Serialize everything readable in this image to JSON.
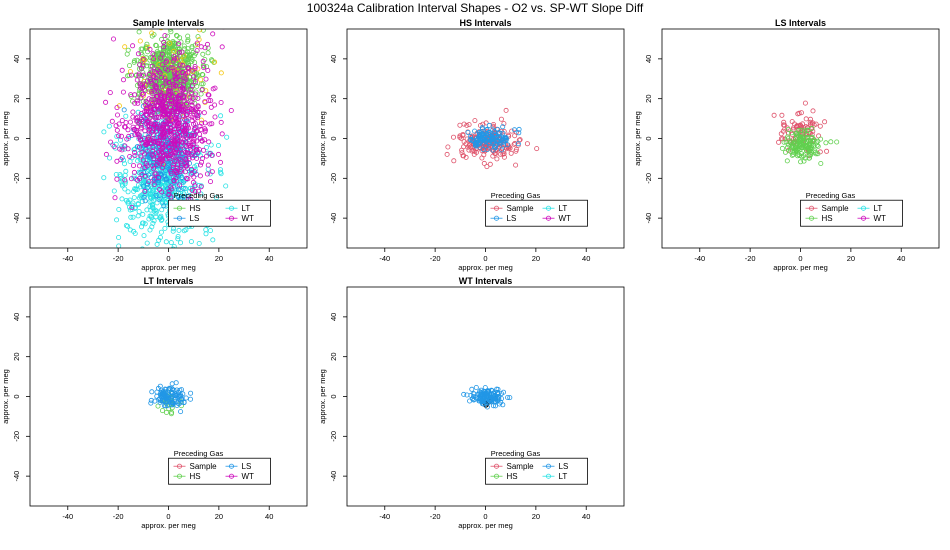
{
  "title": "100324a   Calibration Interval Shapes - O2 vs. SP-WT Slope Diff",
  "colors": {
    "Sample": "#df536b",
    "HS": "#61d04f",
    "LS": "#2297e6",
    "LT": "#28e2e5",
    "WT": "#cd0bbc",
    "extra_yellow": "#f5c710",
    "extra_black": "#000000"
  },
  "legend_title": "Preceding Gas",
  "chart_data": [
    {
      "type": "scatter",
      "title": "Sample Intervals",
      "xlabel": "approx. per meg",
      "ylabel": "approx. per meg",
      "xlim": [
        -55,
        55
      ],
      "ylim": [
        -55,
        55
      ],
      "xticks": [
        -40,
        -20,
        0,
        20,
        40
      ],
      "yticks": [
        -40,
        -20,
        0,
        20,
        40
      ],
      "legend": [
        "HS",
        "LT",
        "LS",
        "WT"
      ],
      "series": [
        {
          "name": "LT",
          "count": 700,
          "cx": -2,
          "cy": -18,
          "sx": 8,
          "sy": 18
        },
        {
          "name": "LS",
          "count": 250,
          "cx": -1,
          "cy": -5,
          "sx": 6,
          "sy": 14
        },
        {
          "name": "HS",
          "count": 650,
          "cx": 0,
          "cy": 32,
          "sx": 6,
          "sy": 9
        },
        {
          "name": "extra_yellow",
          "count": 60,
          "cx": 2,
          "cy": 30,
          "sx": 10,
          "sy": 15
        },
        {
          "name": "WT",
          "count": 750,
          "cx": 0,
          "cy": 8,
          "sx": 9,
          "sy": 17
        }
      ]
    },
    {
      "type": "scatter",
      "title": "HS Intervals",
      "xlabel": "approx. per meg",
      "ylabel": "approx. per meg",
      "xlim": [
        -55,
        55
      ],
      "ylim": [
        -55,
        55
      ],
      "xticks": [
        -40,
        -20,
        0,
        20,
        40
      ],
      "yticks": [
        -40,
        -20,
        0,
        20,
        40
      ],
      "legend": [
        "Sample",
        "LT",
        "LS",
        "WT"
      ],
      "series": [
        {
          "name": "Sample",
          "count": 200,
          "cx": 0,
          "cy": -2,
          "sx": 6.5,
          "sy": 4.5
        },
        {
          "name": "LS",
          "count": 120,
          "cx": 1,
          "cy": 0,
          "sx": 4.5,
          "sy": 2.5
        }
      ]
    },
    {
      "type": "scatter",
      "title": "LS Intervals",
      "xlabel": "approx. per meg",
      "ylabel": "approx. per meg",
      "xlim": [
        -55,
        55
      ],
      "ylim": [
        -55,
        55
      ],
      "xticks": [
        -40,
        -20,
        0,
        20,
        40
      ],
      "yticks": [
        -40,
        -20,
        0,
        20,
        40
      ],
      "legend": [
        "Sample",
        "LT",
        "HS",
        "WT"
      ],
      "series": [
        {
          "name": "Sample",
          "count": 90,
          "cx": 0,
          "cy": 3,
          "sx": 4.5,
          "sy": 5
        },
        {
          "name": "HS",
          "count": 140,
          "cx": 1,
          "cy": -3,
          "sx": 4,
          "sy": 4
        }
      ]
    },
    {
      "type": "scatter",
      "title": "LT Intervals",
      "xlabel": "approx. per meg",
      "ylabel": "approx. per meg",
      "xlim": [
        -55,
        55
      ],
      "ylim": [
        -55,
        55
      ],
      "xticks": [
        -40,
        -20,
        0,
        20,
        40
      ],
      "yticks": [
        -40,
        -20,
        0,
        20,
        40
      ],
      "legend": [
        "Sample",
        "LS",
        "HS",
        "WT"
      ],
      "series": [
        {
          "name": "HS",
          "count": 25,
          "cx": 0,
          "cy": -3,
          "sx": 2,
          "sy": 3
        },
        {
          "name": "LS",
          "count": 110,
          "cx": 0.5,
          "cy": 0,
          "sx": 3,
          "sy": 2.5
        }
      ]
    },
    {
      "type": "scatter",
      "title": "WT Intervals",
      "xlabel": "approx. per meg",
      "ylabel": "approx. per meg",
      "xlim": [
        -55,
        55
      ],
      "ylim": [
        -55,
        55
      ],
      "xticks": [
        -40,
        -20,
        0,
        20,
        40
      ],
      "yticks": [
        -40,
        -20,
        0,
        20,
        40
      ],
      "legend": [
        "Sample",
        "LS",
        "HS",
        "LT"
      ],
      "series": [
        {
          "name": "extra_black",
          "count": 12,
          "cx": 0,
          "cy": -3,
          "sx": 1.5,
          "sy": 1.5
        },
        {
          "name": "LS",
          "count": 130,
          "cx": 0.5,
          "cy": 0,
          "sx": 3,
          "sy": 2.2
        }
      ]
    }
  ]
}
